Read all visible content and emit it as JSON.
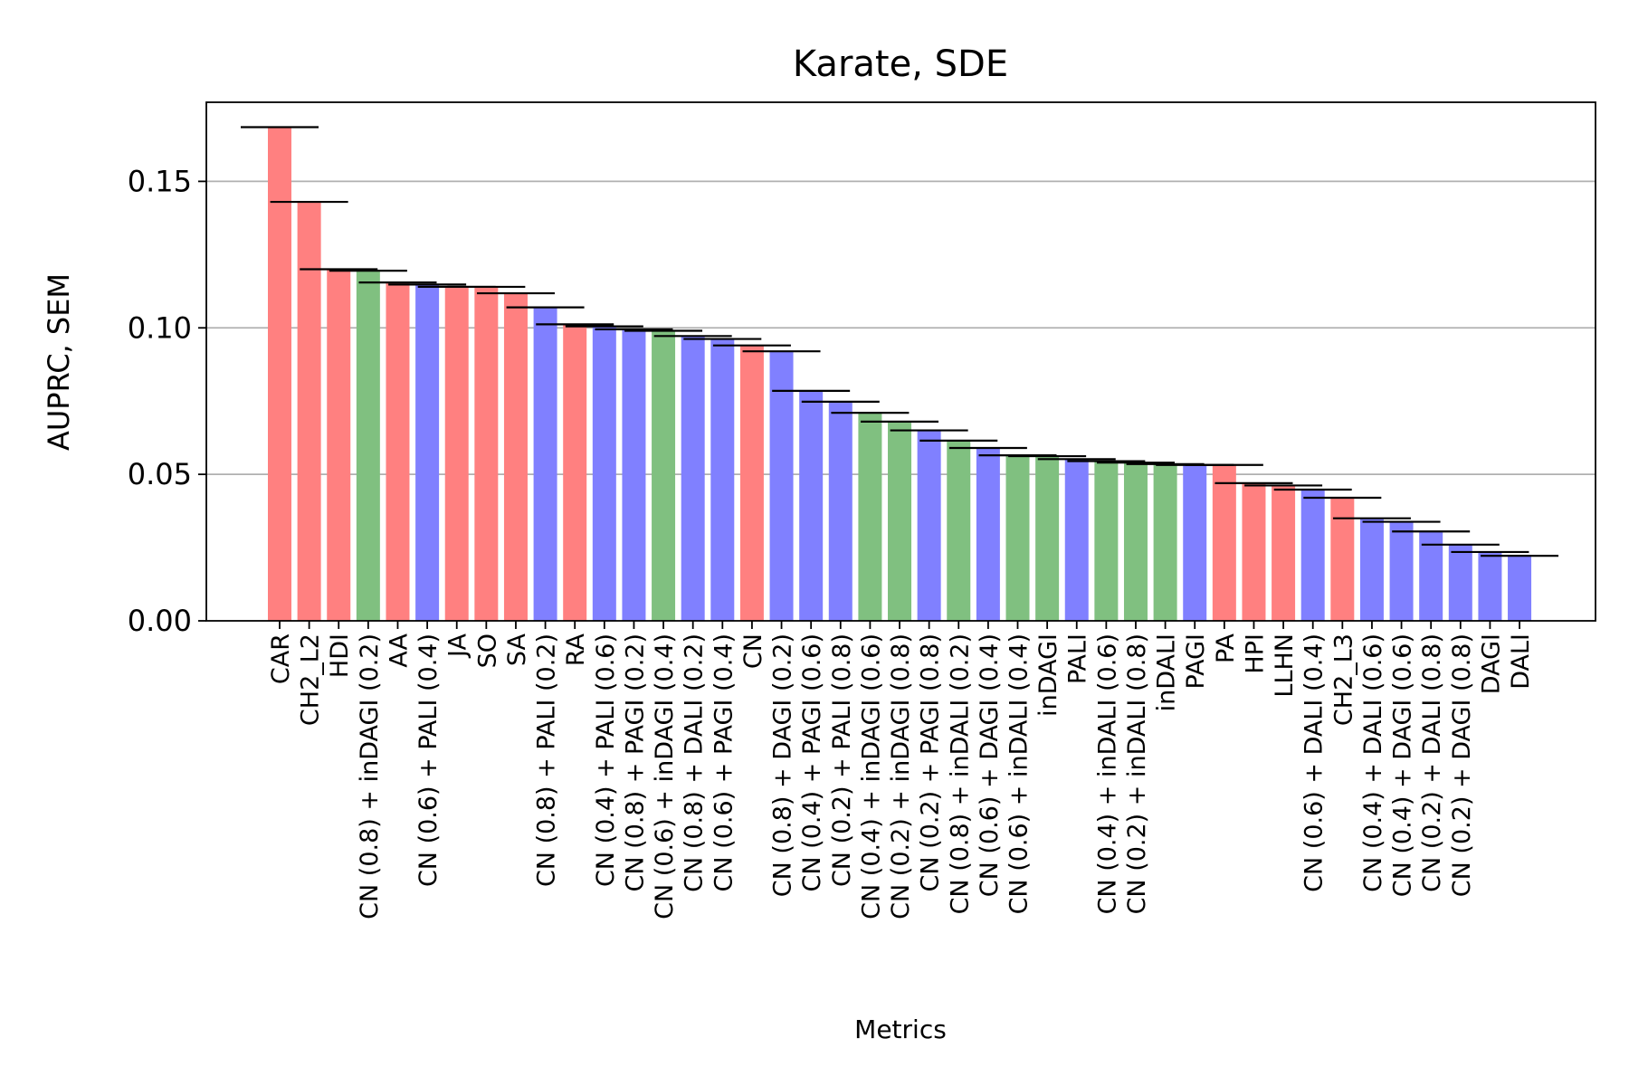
{
  "chart_data": {
    "type": "bar",
    "title": "Karate, SDE",
    "xlabel": "Metrics",
    "ylabel": "AUPRC, SEM",
    "ylim": [
      0,
      0.177
    ],
    "yticks": [
      "0.00",
      "0.05",
      "0.10",
      "0.15"
    ],
    "ytick_values": [
      0,
      0.05,
      0.1,
      0.15
    ],
    "grid": "horizontal",
    "colors": {
      "red": "#ff8080",
      "blue": "#8080ff",
      "green": "#80c080",
      "errorbar": "#000000",
      "grid": "#b0b0b0"
    },
    "categories": [
      "CAR",
      "CH2_L2",
      "HDI",
      "CN (0.8) + inDAGI (0.2)",
      "AA",
      "CN (0.6) + PALI (0.4)",
      "JA",
      "SO",
      "SA",
      "CN (0.8) + PALI (0.2)",
      "RA",
      "CN (0.4) + PALI (0.6)",
      "CN (0.8) + PAGI (0.2)",
      "CN (0.6) + inDAGI (0.4)",
      "CN (0.8) + DALI (0.2)",
      "CN (0.6) + PAGI (0.4)",
      "CN",
      "CN (0.8) + DAGI (0.2)",
      "CN (0.4) + PAGI (0.6)",
      "CN (0.2) + PALI (0.8)",
      "CN (0.4) + inDAGI (0.6)",
      "CN (0.2) + inDAGI (0.8)",
      "CN (0.2) + PAGI (0.8)",
      "CN (0.8) + inDALI (0.2)",
      "CN (0.6) + DAGI (0.4)",
      "CN (0.6) + inDALI (0.4)",
      "inDAGI",
      "PALI",
      "CN (0.4) + inDALI (0.6)",
      "CN (0.2) + inDALI (0.8)",
      "inDALI",
      "PAGI",
      "PA",
      "HPI",
      "LLHN",
      "CN (0.6) + DALI (0.4)",
      "CH2_L3",
      "CN (0.4) + DALI (0.6)",
      "CN (0.4) + DAGI (0.6)",
      "CN (0.2) + DALI (0.8)",
      "CN (0.2) + DAGI (0.8)",
      "DAGI",
      "DALI"
    ],
    "values": [
      0.1685,
      0.143,
      0.12,
      0.1195,
      0.1155,
      0.1148,
      0.114,
      0.114,
      0.1118,
      0.107,
      0.1012,
      0.1005,
      0.0995,
      0.099,
      0.0972,
      0.0962,
      0.094,
      0.092,
      0.0785,
      0.0748,
      0.071,
      0.068,
      0.065,
      0.0615,
      0.059,
      0.0565,
      0.0562,
      0.0552,
      0.0545,
      0.054,
      0.0535,
      0.0532,
      0.0532,
      0.047,
      0.0462,
      0.0448,
      0.042,
      0.035,
      0.0338,
      0.0305,
      0.026,
      0.0235,
      0.0222
    ],
    "bar_colors": [
      "red",
      "red",
      "red",
      "green",
      "red",
      "blue",
      "red",
      "red",
      "red",
      "blue",
      "red",
      "blue",
      "blue",
      "green",
      "blue",
      "blue",
      "red",
      "blue",
      "blue",
      "blue",
      "green",
      "green",
      "blue",
      "green",
      "blue",
      "green",
      "green",
      "blue",
      "green",
      "green",
      "green",
      "blue",
      "red",
      "red",
      "red",
      "blue",
      "red",
      "blue",
      "blue",
      "blue",
      "blue",
      "blue",
      "blue"
    ]
  }
}
